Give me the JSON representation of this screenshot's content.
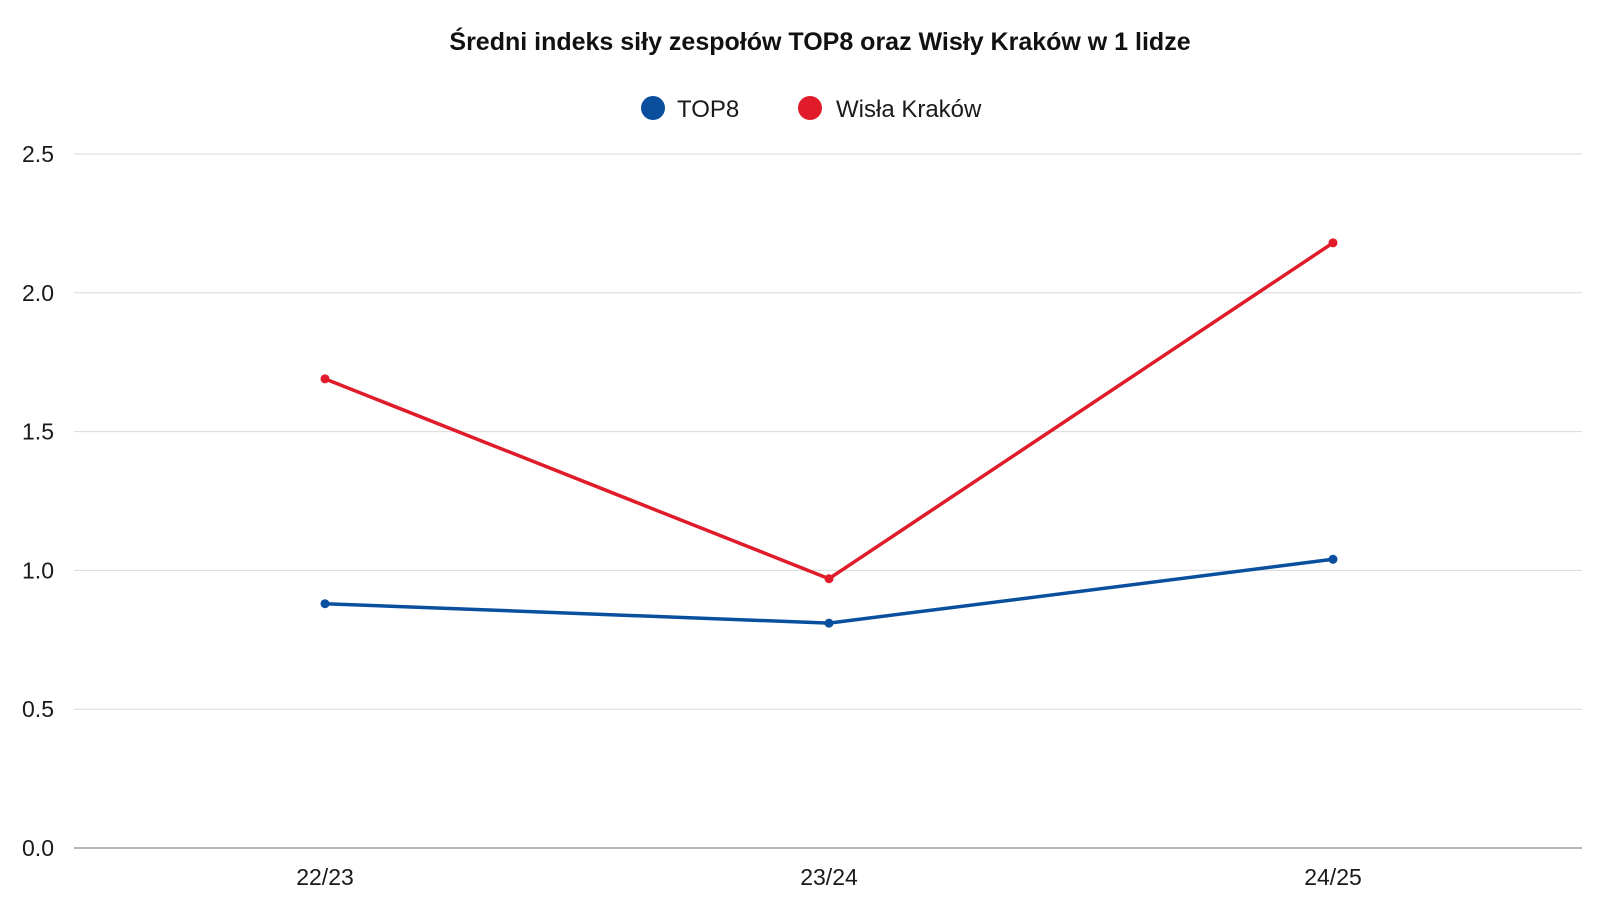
{
  "chart_data": {
    "type": "line",
    "title": "Średni indeks siły zespołów TOP8 oraz Wisły Kraków w 1 lidze",
    "xlabel": "",
    "ylabel": "",
    "categories": [
      "22/23",
      "23/24",
      "24/25"
    ],
    "ylim": [
      0,
      2.5
    ],
    "yticks": [
      "0.0",
      "0.5",
      "1.0",
      "1.5",
      "2.0",
      "2.5"
    ],
    "grid": true,
    "legend_position": "top-center",
    "series": [
      {
        "name": "TOP8",
        "color": "#0a4f9e",
        "values": [
          0.88,
          0.81,
          1.04
        ]
      },
      {
        "name": "Wisła Kraków",
        "color": "#e01b2a",
        "values": [
          1.69,
          0.97,
          2.18
        ]
      }
    ]
  }
}
